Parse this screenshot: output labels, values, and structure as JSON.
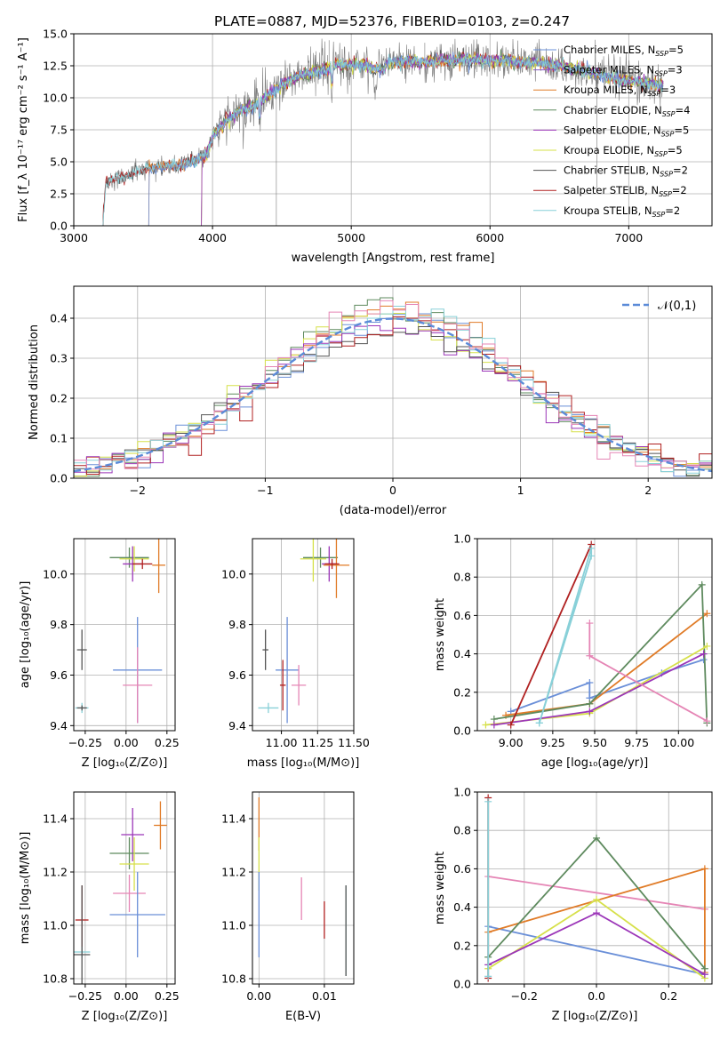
{
  "title": "PLATE=0887, MJD=52376, FIBERID=0103, z=0.247",
  "colors": {
    "chabrier_miles": "#6a8fd8",
    "salpeter_miles": "#8a5fc8",
    "kroupa_miles": "#e07b27",
    "chabrier_elodie": "#5e8a5e",
    "salpeter_elodie": "#9b35b8",
    "kroupa_elodie": "#d6e04a",
    "chabrier_stelib": "#555555",
    "salpeter_stelib": "#b02020",
    "kroupa_stelib": "#88d0d8",
    "pink": "#e585b5",
    "gridline": "#b0b0b0",
    "normal_curve": "#5b8bd8"
  },
  "chart_data": [
    {
      "id": "spectrum",
      "type": "line",
      "xlabel": "wavelength [Angstrom, rest frame]",
      "ylabel": "Flux [f_λ 10⁻¹⁷ erg cm⁻² s⁻¹ A⁻¹]",
      "xlim": [
        3000,
        7600
      ],
      "ylim": [
        0,
        15
      ],
      "xticks": [
        3000,
        4000,
        5000,
        6000,
        7000
      ],
      "yticks": [
        0.0,
        2.5,
        5.0,
        7.5,
        10.0,
        12.5,
        15.0
      ],
      "legend_position": "top-right",
      "legend": [
        {
          "label": "Chabrier MILES, N",
          "sub": "SSP",
          "tail": "=5",
          "color": "chabrier_miles"
        },
        {
          "label": "Salpeter MILES, N",
          "sub": "SSP",
          "tail": "=3",
          "color": "salpeter_miles"
        },
        {
          "label": "Kroupa MILES, N",
          "sub": "SSP",
          "tail": "=3",
          "color": "kroupa_miles"
        },
        {
          "label": "Chabrier ELODIE, N",
          "sub": "SSP",
          "tail": "=4",
          "color": "chabrier_elodie"
        },
        {
          "label": "Salpeter ELODIE, N",
          "sub": "SSP",
          "tail": "=5",
          "color": "salpeter_elodie"
        },
        {
          "label": "Kroupa ELODIE, N",
          "sub": "SSP",
          "tail": "=5",
          "color": "kroupa_elodie"
        },
        {
          "label": "Chabrier STELIB, N",
          "sub": "SSP",
          "tail": "=2",
          "color": "chabrier_stelib"
        },
        {
          "label": "Salpeter STELIB, N",
          "sub": "SSP",
          "tail": "=2",
          "color": "salpeter_stelib"
        },
        {
          "label": "Kroupa STELIB, N",
          "sub": "SSP",
          "tail": "=2",
          "color": "kroupa_stelib"
        }
      ],
      "continuum": [
        [
          3210,
          0
        ],
        [
          3230,
          3.3
        ],
        [
          3300,
          3.7
        ],
        [
          3400,
          4.0
        ],
        [
          3500,
          4.4
        ],
        [
          3600,
          4.6
        ],
        [
          3700,
          4.7
        ],
        [
          3800,
          4.8
        ],
        [
          3900,
          5.2
        ],
        [
          3960,
          5.6
        ],
        [
          4000,
          7.0
        ],
        [
          4100,
          8.2
        ],
        [
          4200,
          9.0
        ],
        [
          4300,
          9.4
        ],
        [
          4400,
          10.2
        ],
        [
          4500,
          11.0
        ],
        [
          4600,
          11.6
        ],
        [
          4700,
          11.9
        ],
        [
          4800,
          12.2
        ],
        [
          4900,
          12.6
        ],
        [
          5000,
          12.6
        ],
        [
          5100,
          12.6
        ],
        [
          5200,
          12.2
        ],
        [
          5300,
          12.8
        ],
        [
          5400,
          12.9
        ],
        [
          5500,
          12.8
        ],
        [
          5600,
          12.9
        ],
        [
          5700,
          12.9
        ],
        [
          5800,
          13.0
        ],
        [
          5900,
          13.0
        ],
        [
          6000,
          12.9
        ],
        [
          6100,
          13.0
        ],
        [
          6200,
          12.8
        ],
        [
          6300,
          12.8
        ],
        [
          6400,
          12.6
        ],
        [
          6500,
          12.5
        ],
        [
          6600,
          12.3
        ],
        [
          6700,
          12.1
        ],
        [
          6800,
          11.8
        ],
        [
          6900,
          11.5
        ],
        [
          7000,
          11.3
        ],
        [
          7100,
          11.2
        ],
        [
          7200,
          11.0
        ],
        [
          7250,
          11.0
        ]
      ],
      "series_starts": {
        "miles": 3540,
        "elodie": 3920,
        "stelib": 3210
      },
      "spikes": [
        [
          4460,
          0
        ],
        [
          4840,
          14.5
        ],
        [
          5530,
          14.3
        ],
        [
          6770,
          2.6
        ]
      ]
    },
    {
      "id": "residuals",
      "type": "histogram",
      "xlabel": "(data-model)/error",
      "ylabel": "Normed distribution",
      "xlim": [
        -2.5,
        2.5
      ],
      "ylim": [
        0,
        0.48
      ],
      "xticks": [
        -2,
        -1,
        0,
        1,
        2
      ],
      "yticks": [
        0.0,
        0.1,
        0.2,
        0.3,
        0.4
      ],
      "legend_label": "𝒩(0,1)",
      "bin_width": 0.1,
      "bin_start": -2.5
    },
    {
      "id": "age_vs_z",
      "type": "errorbar",
      "xlabel": "Z [log₁₀(Z/Z⊙)]",
      "ylabel": "age  [log₁₀(age/yr)]",
      "xlim": [
        -0.32,
        0.3
      ],
      "ylim": [
        9.38,
        10.14
      ],
      "xticks": [
        -0.25,
        0.0,
        0.25
      ],
      "yticks": [
        9.4,
        9.6,
        9.8,
        10.0
      ],
      "points": [
        {
          "x": 0.02,
          "y": 10.065,
          "xerr": 0.12,
          "yerr": 0.04,
          "color": "chabrier_elodie"
        },
        {
          "x": 0.05,
          "y": 10.06,
          "xerr": 0.09,
          "yerr": 0.05,
          "color": "kroupa_elodie"
        },
        {
          "x": 0.04,
          "y": 10.04,
          "xerr": 0.06,
          "yerr": 0.07,
          "color": "salpeter_elodie"
        },
        {
          "x": 0.2,
          "y": 10.035,
          "xerr": 0.04,
          "yerr": 0.11,
          "color": "kroupa_miles"
        },
        {
          "x": 0.1,
          "y": 10.04,
          "xerr": 0.06,
          "yerr": 0.02,
          "color": "salpeter_stelib"
        },
        {
          "x": 0.07,
          "y": 9.62,
          "xerr": 0.15,
          "yerr": 0.21,
          "color": "chabrier_miles"
        },
        {
          "x": -0.27,
          "y": 9.7,
          "xerr": 0.03,
          "yerr": 0.08,
          "color": "chabrier_stelib"
        },
        {
          "x": 0.07,
          "y": 9.56,
          "xerr": 0.09,
          "yerr": 0.15,
          "color": "pink"
        },
        {
          "x": -0.27,
          "y": 9.47,
          "xerr": 0.04,
          "yerr": 0.02,
          "color": "kroupa_stelib"
        },
        {
          "x": -0.27,
          "y": 9.47,
          "xerr": 0.03,
          "yerr": 0.01,
          "color": "chabrier_stelib"
        }
      ]
    },
    {
      "id": "age_vs_mass",
      "type": "errorbar",
      "xlabel": "mass [log₁₀(M/M⊙)]",
      "ylabel": "",
      "xlim": [
        10.8,
        11.5
      ],
      "ylim": [
        9.38,
        10.14
      ],
      "xticks": [
        11.0,
        11.25,
        11.5
      ],
      "yticks": [
        9.4,
        9.6,
        9.8,
        10.0
      ],
      "points": [
        {
          "x": 11.27,
          "y": 10.065,
          "xerr": 0.12,
          "yerr": 0.04,
          "color": "chabrier_elodie"
        },
        {
          "x": 11.22,
          "y": 10.06,
          "xerr": 0.09,
          "yerr": 0.09,
          "color": "kroupa_elodie"
        },
        {
          "x": 11.33,
          "y": 10.04,
          "xerr": 0.05,
          "yerr": 0.07,
          "color": "salpeter_elodie"
        },
        {
          "x": 11.38,
          "y": 10.035,
          "xerr": 0.09,
          "yerr": 0.13,
          "color": "kroupa_miles"
        },
        {
          "x": 11.35,
          "y": 10.04,
          "xerr": 0.05,
          "yerr": 0.02,
          "color": "salpeter_stelib"
        },
        {
          "x": 11.04,
          "y": 9.62,
          "xerr": 0.08,
          "yerr": 0.21,
          "color": "chabrier_miles"
        },
        {
          "x": 10.89,
          "y": 9.7,
          "xerr": 0.02,
          "yerr": 0.08,
          "color": "chabrier_stelib"
        },
        {
          "x": 11.12,
          "y": 9.56,
          "xerr": 0.05,
          "yerr": 0.08,
          "color": "pink"
        },
        {
          "x": 11.01,
          "y": 9.56,
          "xerr": 0.02,
          "yerr": 0.1,
          "color": "salpeter_stelib"
        },
        {
          "x": 10.91,
          "y": 9.47,
          "xerr": 0.07,
          "yerr": 0.02,
          "color": "kroupa_stelib"
        }
      ]
    },
    {
      "id": "weight_vs_age",
      "type": "line",
      "xlabel": "age  [log₁₀(age/yr)]",
      "ylabel": "mass weight",
      "xlim": [
        8.8,
        10.2
      ],
      "ylim": [
        0,
        1
      ],
      "xticks": [
        9.0,
        9.25,
        9.5,
        9.75,
        10.0
      ],
      "yticks": [
        0.0,
        0.2,
        0.4,
        0.6,
        0.8,
        1.0
      ],
      "series": [
        {
          "color": "chabrier_miles",
          "x": [
            9.0,
            9.47,
            9.47,
            9.9,
            10.15
          ],
          "y": [
            0.1,
            0.25,
            0.17,
            0.3,
            0.37
          ]
        },
        {
          "color": "kroupa_miles",
          "x": [
            8.97,
            9.47,
            10.17
          ],
          "y": [
            0.08,
            0.14,
            0.61
          ]
        },
        {
          "color": "chabrier_elodie",
          "x": [
            8.9,
            9.47,
            10.14,
            10.17
          ],
          "y": [
            0.06,
            0.14,
            0.76,
            0.04
          ]
        },
        {
          "color": "kroupa_elodie",
          "x": [
            8.85,
            9.47,
            10.17
          ],
          "y": [
            0.03,
            0.09,
            0.44
          ]
        },
        {
          "color": "salpeter_elodie",
          "x": [
            8.9,
            9.47,
            10.15
          ],
          "y": [
            0.03,
            0.1,
            0.4
          ]
        },
        {
          "color": "salpeter_stelib",
          "x": [
            9.0,
            9.48
          ],
          "y": [
            0.03,
            0.97
          ]
        },
        {
          "color": "kroupa_stelib",
          "x": [
            9.17,
            9.48,
            9.48,
            9.17
          ],
          "y": [
            0.04,
            0.95,
            0.91,
            0.04
          ]
        },
        {
          "color": "pink",
          "x": [
            9.47,
            9.47,
            10.17
          ],
          "y": [
            0.56,
            0.39,
            0.05
          ]
        }
      ]
    },
    {
      "id": "mass_vs_z",
      "type": "errorbar",
      "xlabel": "Z [log₁₀(Z/Z⊙)]",
      "ylabel": "mass [log₁₀(M/M⊙)]",
      "xlim": [
        -0.32,
        0.3
      ],
      "ylim": [
        10.78,
        11.5
      ],
      "xticks": [
        -0.25,
        0.0,
        0.25
      ],
      "yticks": [
        10.8,
        11.0,
        11.2,
        11.4
      ],
      "points": [
        {
          "x": 0.21,
          "y": 11.375,
          "xerr": 0.04,
          "yerr": 0.09,
          "color": "kroupa_miles"
        },
        {
          "x": 0.04,
          "y": 11.34,
          "xerr": 0.07,
          "yerr": 0.1,
          "color": "salpeter_elodie"
        },
        {
          "x": 0.02,
          "y": 11.27,
          "xerr": 0.12,
          "yerr": 0.06,
          "color": "chabrier_elodie"
        },
        {
          "x": 0.05,
          "y": 11.23,
          "xerr": 0.09,
          "yerr": 0.1,
          "color": "kroupa_elodie"
        },
        {
          "x": 0.02,
          "y": 11.12,
          "xerr": 0.1,
          "yerr": 0.07,
          "color": "pink"
        },
        {
          "x": 0.07,
          "y": 11.04,
          "xerr": 0.17,
          "yerr": 0.16,
          "color": "chabrier_miles"
        },
        {
          "x": -0.27,
          "y": 11.02,
          "xerr": 0.04,
          "yerr": 0.13,
          "color": "salpeter_stelib"
        },
        {
          "x": -0.27,
          "y": 10.9,
          "xerr": 0.05,
          "yerr": 0.02,
          "color": "kroupa_stelib"
        },
        {
          "x": -0.27,
          "y": 10.89,
          "xerr": 0.05,
          "yerr": 0.26,
          "color": "chabrier_stelib"
        }
      ]
    },
    {
      "id": "mass_vs_ebv",
      "type": "errorbar",
      "xlabel": "E(B-V)",
      "ylabel": "",
      "xlim": [
        -0.001,
        0.0145
      ],
      "ylim": [
        10.78,
        11.5
      ],
      "xticks": [
        0.0,
        0.01
      ],
      "yticks": [
        10.8,
        11.0,
        11.2,
        11.4
      ],
      "points": [
        {
          "x": 0.0,
          "y": 11.38,
          "xerr": 0,
          "yerr": 0.1,
          "color": "kroupa_miles"
        },
        {
          "x": 0.0,
          "y": 11.23,
          "xerr": 0,
          "yerr": 0.1,
          "color": "kroupa_elodie"
        },
        {
          "x": 0.0,
          "y": 11.04,
          "xerr": 0,
          "yerr": 0.16,
          "color": "chabrier_miles"
        },
        {
          "x": 0.0065,
          "y": 11.1,
          "xerr": 0,
          "yerr": 0.08,
          "color": "pink"
        },
        {
          "x": 0.01,
          "y": 11.02,
          "xerr": 0,
          "yerr": 0.07,
          "color": "salpeter_stelib"
        },
        {
          "x": 0.0133,
          "y": 10.98,
          "xerr": 0,
          "yerr": 0.17,
          "color": "kroupa_stelib"
        },
        {
          "x": 0.0133,
          "y": 10.98,
          "xerr": 0,
          "yerr": 0.17,
          "color": "chabrier_stelib"
        }
      ]
    },
    {
      "id": "weight_vs_z",
      "type": "line",
      "xlabel": "Z [log₁₀(Z/Z⊙)]",
      "ylabel": "mass weight",
      "xlim": [
        -0.33,
        0.32
      ],
      "ylim": [
        0,
        1
      ],
      "xticks": [
        -0.2,
        0.0,
        0.2
      ],
      "yticks": [
        0.0,
        0.2,
        0.4,
        0.6,
        0.8,
        1.0
      ],
      "series": [
        {
          "color": "chabrier_miles",
          "x": [
            -0.3,
            0.3
          ],
          "y": [
            0.3,
            0.05
          ]
        },
        {
          "color": "pink",
          "x": [
            -0.3,
            0.3
          ],
          "y": [
            0.56,
            0.39
          ]
        },
        {
          "color": "kroupa_miles",
          "x": [
            -0.3,
            0.3,
            0.3
          ],
          "y": [
            0.27,
            0.6,
            0.06
          ]
        },
        {
          "color": "chabrier_elodie",
          "x": [
            -0.3,
            0.0,
            0.3
          ],
          "y": [
            0.14,
            0.76,
            0.08
          ]
        },
        {
          "color": "kroupa_elodie",
          "x": [
            -0.3,
            0.0,
            0.3
          ],
          "y": [
            0.08,
            0.44,
            0.03
          ]
        },
        {
          "color": "salpeter_elodie",
          "x": [
            -0.3,
            0.0,
            0.3
          ],
          "y": [
            0.1,
            0.37,
            0.05
          ]
        },
        {
          "color": "salpeter_stelib",
          "x": [
            -0.3,
            -0.3
          ],
          "y": [
            0.97,
            0.03
          ]
        },
        {
          "color": "kroupa_stelib",
          "x": [
            -0.3,
            -0.3
          ],
          "y": [
            0.95,
            0.04
          ]
        }
      ]
    }
  ]
}
